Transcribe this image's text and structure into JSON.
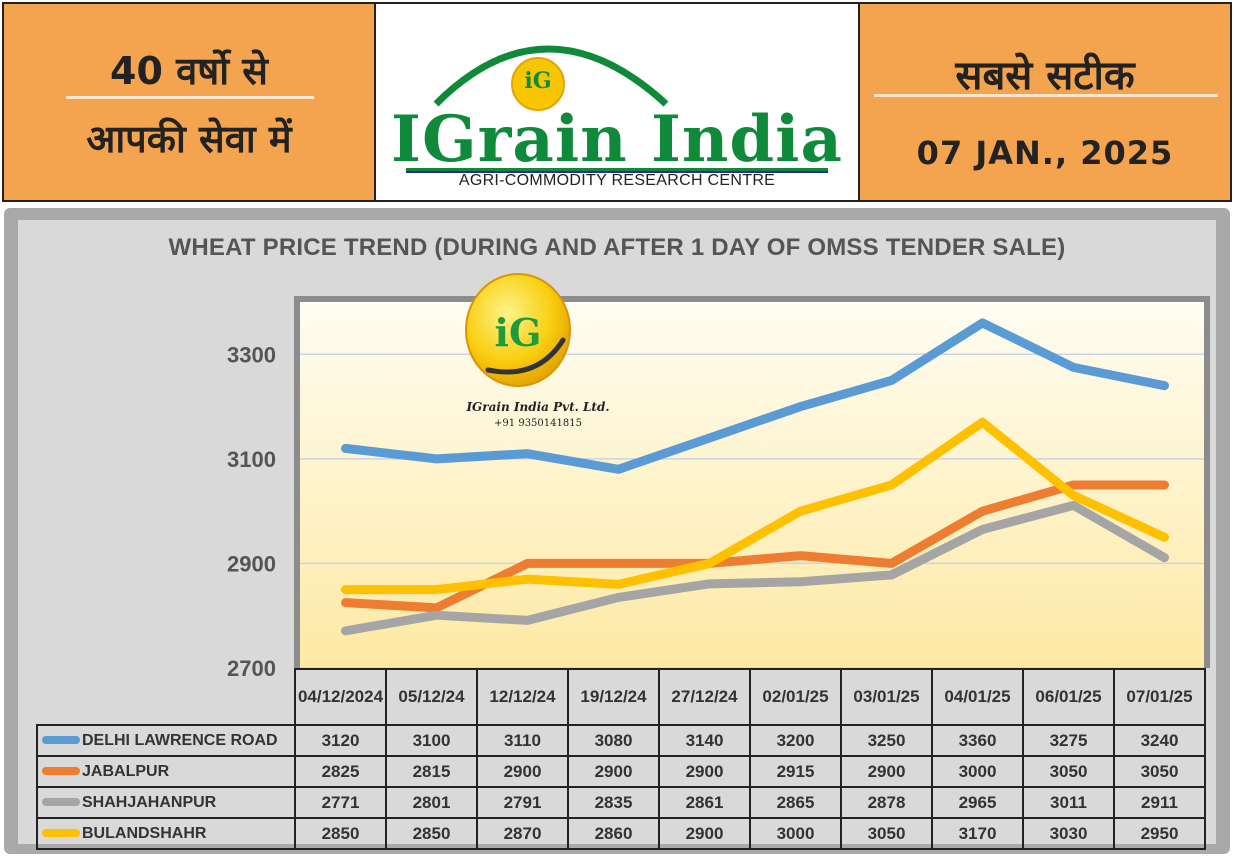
{
  "header": {
    "left_line1": "40 वर्षो से",
    "left_line2": "आपकी सेवा में",
    "brand_name": "IGrain India",
    "brand_tagline": "AGRI-COMMODITY RESEARCH CENTRE",
    "logo_monogram": "iG",
    "right_line1": "सबसे सटीक",
    "date": "07 JAN., 2025"
  },
  "watermark": {
    "company": "IGrain India Pvt. Ltd.",
    "phone": "+91 9350141815"
  },
  "colors": {
    "orange_band": "#f4a44e",
    "brand_green": "#0f8a3a",
    "panel_gray": "#a9a9a9",
    "series_delhi": "#5b9bd5",
    "series_jabalpur": "#ed7d31",
    "series_shahjahanpur": "#a5a5a5",
    "series_bulandshahr": "#ffc000"
  },
  "chart_data": {
    "type": "line",
    "title": "WHEAT PRICE TREND (DURING AND AFTER 1 DAY OF OMSS TENDER SALE)",
    "categories": [
      "04/12/2024",
      "05/12/24",
      "12/12/24",
      "19/12/24",
      "27/12/24",
      "02/01/25",
      "03/01/25",
      "04/01/25",
      "06/01/25",
      "07/01/25"
    ],
    "ylim": [
      2700,
      3400
    ],
    "yticks": [
      2700,
      2900,
      3100,
      3300
    ],
    "grid": true,
    "legend": "data table below chart",
    "series": [
      {
        "name": "DELHI LAWRENCE ROAD",
        "color": "#5b9bd5",
        "values": [
          3120,
          3100,
          3110,
          3080,
          3140,
          3200,
          3250,
          3360,
          3275,
          3240
        ]
      },
      {
        "name": "JABALPUR",
        "color": "#ed7d31",
        "values": [
          2825,
          2815,
          2900,
          2900,
          2900,
          2915,
          2900,
          3000,
          3050,
          3050
        ]
      },
      {
        "name": "SHAHJAHANPUR",
        "color": "#a5a5a5",
        "values": [
          2771,
          2801,
          2791,
          2835,
          2861,
          2865,
          2878,
          2965,
          3011,
          2911
        ]
      },
      {
        "name": "BULANDSHAHR",
        "color": "#ffc000",
        "values": [
          2850,
          2850,
          2870,
          2860,
          2900,
          3000,
          3050,
          3170,
          3030,
          2950
        ]
      }
    ]
  }
}
